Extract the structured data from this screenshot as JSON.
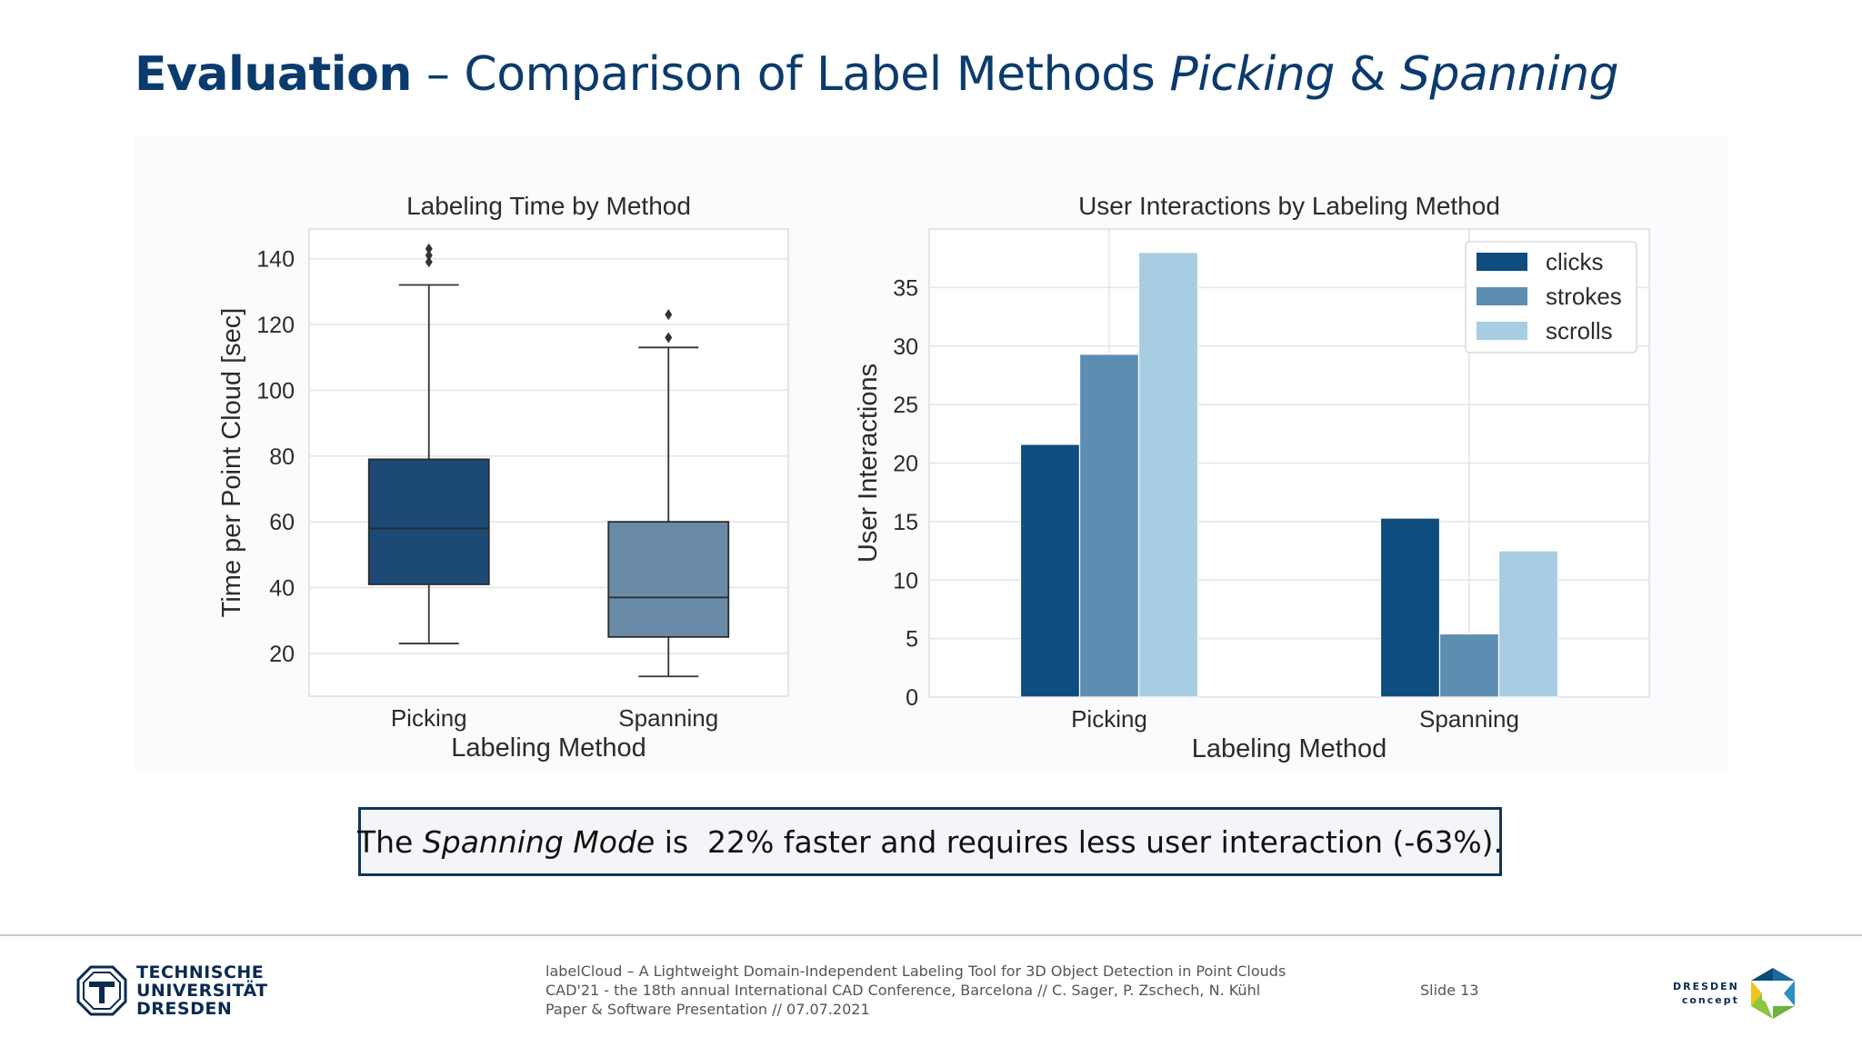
{
  "title": {
    "bold": "Evaluation",
    "dash": " – Comparison of Label Methods ",
    "italic1": "Picking",
    "amp": " & ",
    "italic2": "Spanning"
  },
  "chart_data": [
    {
      "type": "box",
      "title": "Labeling Time by Method",
      "xlabel": "Labeling Method",
      "ylabel": "Time per Point Cloud [sec]",
      "categories": [
        "Picking",
        "Spanning"
      ],
      "yticks": [
        20,
        40,
        60,
        80,
        100,
        120,
        140
      ],
      "ylim": [
        7,
        149
      ],
      "grid": true,
      "boxes": [
        {
          "name": "Picking",
          "whisker_low": 23,
          "q1": 41,
          "median": 58,
          "q3": 79,
          "whisker_high": 132,
          "outliers": [
            139,
            141,
            143
          ],
          "color": "#1c4a74"
        },
        {
          "name": "Spanning",
          "whisker_low": 13,
          "q1": 25,
          "median": 37,
          "q3": 60,
          "whisker_high": 113,
          "outliers": [
            116,
            123
          ],
          "color": "#6a8ba8"
        }
      ]
    },
    {
      "type": "bar",
      "title": "User Interactions by Labeling Method",
      "xlabel": "Labeling Method",
      "ylabel": "User Interactions",
      "categories": [
        "Picking",
        "Spanning"
      ],
      "yticks": [
        0,
        5,
        10,
        15,
        20,
        25,
        30,
        35
      ],
      "ylim": [
        0,
        40
      ],
      "grid": true,
      "legend_position": "top-right",
      "series": [
        {
          "name": "clicks",
          "values": [
            21.6,
            15.3
          ],
          "color": "#0f4d7e"
        },
        {
          "name": "strokes",
          "values": [
            29.3,
            5.4
          ],
          "color": "#5e8db2"
        },
        {
          "name": "scrolls",
          "values": [
            38.0,
            12.5
          ],
          "color": "#a7cde2"
        }
      ]
    }
  ],
  "callout": {
    "prefix": "The ",
    "italic": "Spanning Mode",
    "suffix": " is  22% faster and requires less user interaction (-63%)."
  },
  "footer": {
    "logo_line1": "TECHNISCHE",
    "logo_line2": "UNIVERSITÄT",
    "logo_line3": "DRESDEN",
    "line1": "labelCloud – A Lightweight Domain-Independent Labeling Tool for 3D Object Detection in Point Clouds",
    "line2": "CAD'21 - the 18th annual International CAD Conference, Barcelona // C. Sager, P. Zschech, N. Kühl",
    "line3": "Paper & Software Presentation // 07.07.2021",
    "slide": "Slide 13",
    "dd_line1": "DRESDEN",
    "dd_line2": "concept"
  },
  "colors": {
    "title": "#0b3b6e",
    "callout_border": "#13355c"
  }
}
